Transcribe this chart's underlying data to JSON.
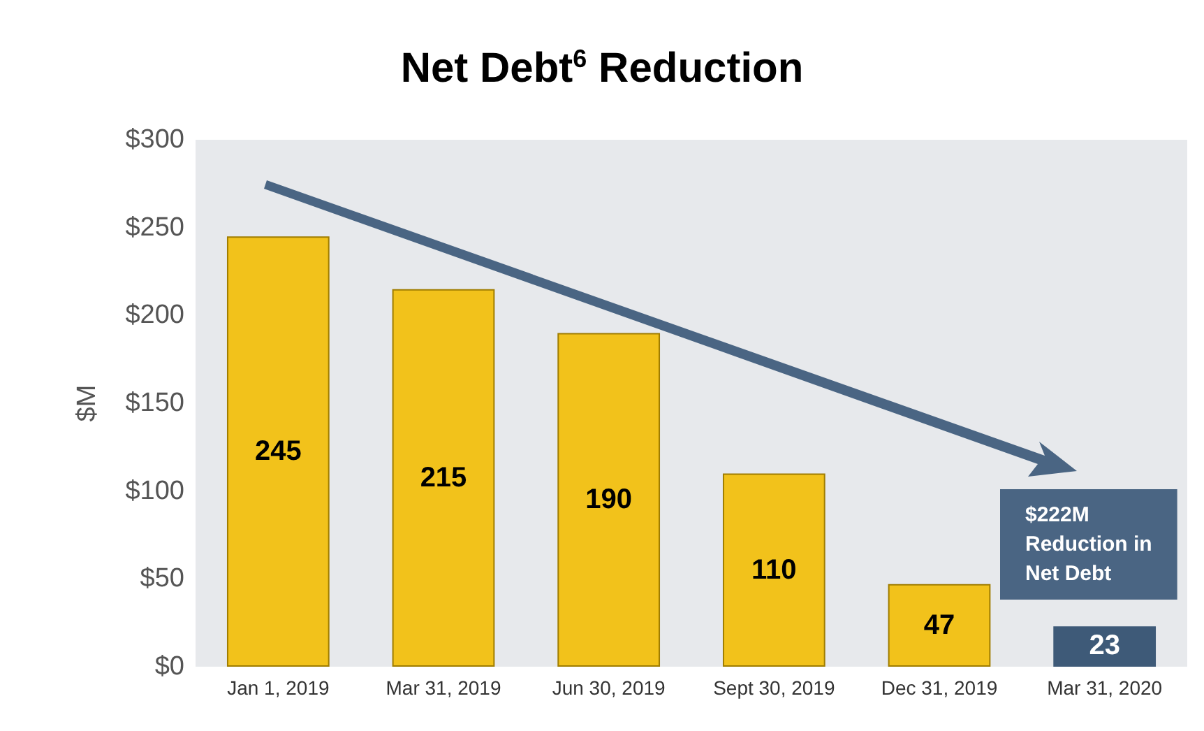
{
  "chart_data": {
    "type": "bar",
    "title": "Net Debt$^{6}$ Reduction",
    "ylabel": "$M",
    "categories": [
      "Jan 1, 2019",
      "Mar 31, 2019",
      "Jun 30, 2019",
      "Sept 30, 2019",
      "Dec 31, 2019",
      "Mar 31, 2020"
    ],
    "values": [
      245,
      215,
      190,
      110,
      47,
      23
    ],
    "colors": [
      "#f2c21b",
      "#f2c21b",
      "#f2c21b",
      "#f2c21b",
      "#f2c21b",
      "#3e5a78"
    ],
    "ylim": [
      0,
      300
    ],
    "yticks": [
      {
        "value": 0,
        "label": "$0"
      },
      {
        "value": 50,
        "label": "$50"
      },
      {
        "value": 100,
        "label": "$100"
      },
      {
        "value": 150,
        "label": "$150"
      },
      {
        "value": 200,
        "label": "$200"
      },
      {
        "value": 250,
        "label": "$250"
      },
      {
        "value": 300,
        "label": "$300"
      }
    ],
    "data_labels": true,
    "grid": false,
    "annotations": [
      "$222M\nReduction in\nNet Debt"
    ]
  }
}
